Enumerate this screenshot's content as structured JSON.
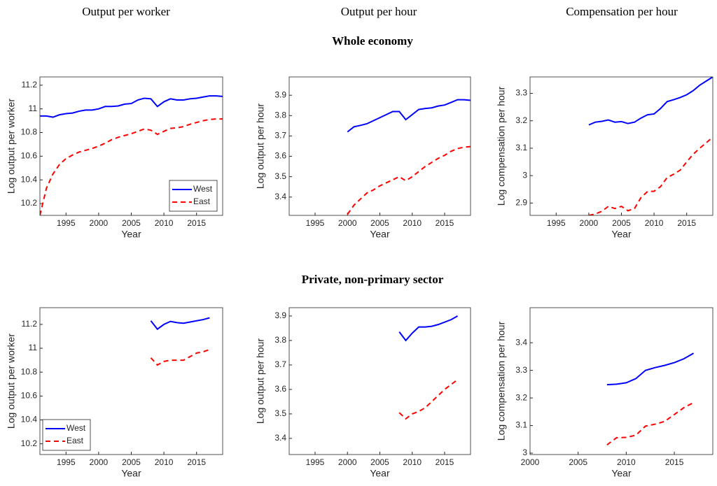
{
  "column_titles": [
    "Output per worker",
    "Output per hour",
    "Compensation per hour"
  ],
  "row_titles": [
    "Whole economy",
    "Private, non-primary sector"
  ],
  "chart_data": [
    {
      "type": "line",
      "xlabel": "Year",
      "ylabel": "Log output per worker",
      "legend": "lower right",
      "xlim": [
        1991,
        2019
      ],
      "xticks": [
        1995,
        2000,
        2005,
        2010,
        2015
      ],
      "ylim": [
        10.1,
        11.27
      ],
      "yticks": [
        10.2,
        10.4,
        10.6,
        10.8,
        11,
        11.2
      ],
      "x": [
        1991,
        1992,
        1993,
        1994,
        1995,
        1996,
        1997,
        1998,
        1999,
        2000,
        2001,
        2002,
        2003,
        2004,
        2005,
        2006,
        2007,
        2008,
        2009,
        2010,
        2011,
        2012,
        2013,
        2014,
        2015,
        2016,
        2017,
        2018,
        2019
      ],
      "series": [
        {
          "name": "West",
          "color": "#0000ff",
          "linestyle": "solid",
          "values": [
            10.94,
            10.94,
            10.93,
            10.95,
            10.96,
            10.965,
            10.98,
            10.99,
            10.99,
            11.0,
            11.02,
            11.02,
            11.025,
            11.04,
            11.045,
            11.075,
            11.09,
            11.085,
            11.02,
            11.06,
            11.085,
            11.075,
            11.075,
            11.085,
            11.09,
            11.1,
            11.11,
            11.11,
            11.105
          ]
        },
        {
          "name": "East",
          "color": "#ff0000",
          "linestyle": "dashed",
          "values": [
            10.1,
            10.33,
            10.45,
            10.53,
            10.58,
            10.61,
            10.635,
            10.65,
            10.665,
            10.685,
            10.71,
            10.74,
            10.76,
            10.775,
            10.79,
            10.81,
            10.83,
            10.82,
            10.785,
            10.81,
            10.835,
            10.84,
            10.85,
            10.87,
            10.885,
            10.9,
            10.91,
            10.915,
            10.915
          ]
        }
      ]
    },
    {
      "type": "line",
      "xlabel": "Year",
      "ylabel": "Log output per hour",
      "xlim": [
        1991,
        2019
      ],
      "xticks": [
        1995,
        2000,
        2005,
        2010,
        2015
      ],
      "ylim": [
        3.31,
        3.99
      ],
      "yticks": [
        3.4,
        3.5,
        3.6,
        3.7,
        3.8,
        3.9
      ],
      "x": [
        2000,
        2001,
        2002,
        2003,
        2004,
        2005,
        2006,
        2007,
        2008,
        2009,
        2010,
        2011,
        2012,
        2013,
        2014,
        2015,
        2016,
        2017,
        2018,
        2019
      ],
      "series": [
        {
          "color": "#0000ff",
          "linestyle": "solid",
          "values": [
            3.72,
            3.745,
            3.752,
            3.76,
            3.775,
            3.79,
            3.805,
            3.82,
            3.82,
            3.78,
            3.805,
            3.83,
            3.835,
            3.838,
            3.847,
            3.852,
            3.865,
            3.878,
            3.878,
            3.875
          ]
        },
        {
          "color": "#ff0000",
          "linestyle": "dashed",
          "values": [
            3.315,
            3.36,
            3.39,
            3.42,
            3.435,
            3.455,
            3.47,
            3.485,
            3.5,
            3.48,
            3.5,
            3.525,
            3.55,
            3.57,
            3.59,
            3.605,
            3.625,
            3.638,
            3.645,
            3.648
          ]
        }
      ]
    },
    {
      "type": "line",
      "xlabel": "Year",
      "ylabel": "Log compensation per hour",
      "xlim": [
        1991,
        2019
      ],
      "xticks": [
        1995,
        2000,
        2005,
        2010,
        2015
      ],
      "ylim": [
        2.855,
        3.36
      ],
      "yticks": [
        2.9,
        3,
        3.1,
        3.2,
        3.3
      ],
      "x": [
        2000,
        2001,
        2002,
        2003,
        2004,
        2005,
        2006,
        2007,
        2008,
        2009,
        2010,
        2011,
        2012,
        2013,
        2014,
        2015,
        2016,
        2017,
        2018,
        2019
      ],
      "series": [
        {
          "color": "#0000ff",
          "linestyle": "solid",
          "values": [
            3.185,
            3.195,
            3.198,
            3.203,
            3.195,
            3.197,
            3.19,
            3.195,
            3.21,
            3.222,
            3.225,
            3.245,
            3.27,
            3.277,
            3.285,
            3.295,
            3.31,
            3.33,
            3.345,
            3.36
          ]
        },
        {
          "color": "#ff0000",
          "linestyle": "dashed",
          "values": [
            2.855,
            2.86,
            2.87,
            2.888,
            2.88,
            2.888,
            2.872,
            2.88,
            2.92,
            2.942,
            2.943,
            2.96,
            2.993,
            3.005,
            3.02,
            3.05,
            3.078,
            3.1,
            3.12,
            3.14
          ]
        }
      ]
    },
    {
      "type": "line",
      "xlabel": "Year",
      "ylabel": "Log output per worker",
      "legend": "lower left",
      "xlim": [
        1991,
        2019
      ],
      "xticks": [
        1995,
        2000,
        2005,
        2010,
        2015
      ],
      "ylim": [
        10.11,
        11.34
      ],
      "yticks": [
        10.2,
        10.4,
        10.6,
        10.8,
        11,
        11.2
      ],
      "x": [
        2008,
        2009,
        2010,
        2011,
        2012,
        2013,
        2014,
        2015,
        2016,
        2017
      ],
      "series": [
        {
          "name": "West",
          "color": "#0000ff",
          "linestyle": "solid",
          "values": [
            11.23,
            11.16,
            11.2,
            11.225,
            11.215,
            11.21,
            11.22,
            11.23,
            11.24,
            11.255
          ]
        },
        {
          "name": "East",
          "color": "#ff0000",
          "linestyle": "dashed",
          "values": [
            10.92,
            10.86,
            10.89,
            10.9,
            10.9,
            10.9,
            10.93,
            10.96,
            10.97,
            10.99
          ]
        }
      ]
    },
    {
      "type": "line",
      "xlabel": "Year",
      "ylabel": "Log output per hour",
      "xlim": [
        1991,
        2019
      ],
      "xticks": [
        1995,
        2000,
        2005,
        2010,
        2015
      ],
      "ylim": [
        3.334,
        3.934
      ],
      "yticks": [
        3.4,
        3.5,
        3.6,
        3.7,
        3.8,
        3.9
      ],
      "x": [
        2008,
        2009,
        2010,
        2011,
        2012,
        2013,
        2014,
        2015,
        2016,
        2017
      ],
      "series": [
        {
          "color": "#0000ff",
          "linestyle": "solid",
          "values": [
            3.835,
            3.8,
            3.83,
            3.855,
            3.855,
            3.858,
            3.865,
            3.875,
            3.885,
            3.9
          ]
        },
        {
          "color": "#ff0000",
          "linestyle": "dashed",
          "values": [
            3.505,
            3.48,
            3.5,
            3.51,
            3.525,
            3.55,
            3.575,
            3.6,
            3.62,
            3.64
          ]
        }
      ]
    },
    {
      "type": "line",
      "xlabel": "Year",
      "ylabel": "Log compensation per hour",
      "xlim": [
        2000,
        2019
      ],
      "xticks": [
        2000,
        2005,
        2010,
        2015
      ],
      "ylim": [
        2.995,
        3.527
      ],
      "yticks": [
        3,
        3.1,
        3.2,
        3.3,
        3.4
      ],
      "x": [
        2008,
        2009,
        2010,
        2011,
        2012,
        2013,
        2014,
        2015,
        2016,
        2017
      ],
      "series": [
        {
          "color": "#0000ff",
          "linestyle": "solid",
          "values": [
            3.248,
            3.25,
            3.255,
            3.27,
            3.3,
            3.31,
            3.318,
            3.328,
            3.342,
            3.362
          ]
        },
        {
          "color": "#ff0000",
          "linestyle": "dashed",
          "values": [
            3.03,
            3.056,
            3.057,
            3.065,
            3.098,
            3.105,
            3.115,
            3.14,
            3.165,
            3.183
          ]
        }
      ]
    }
  ]
}
